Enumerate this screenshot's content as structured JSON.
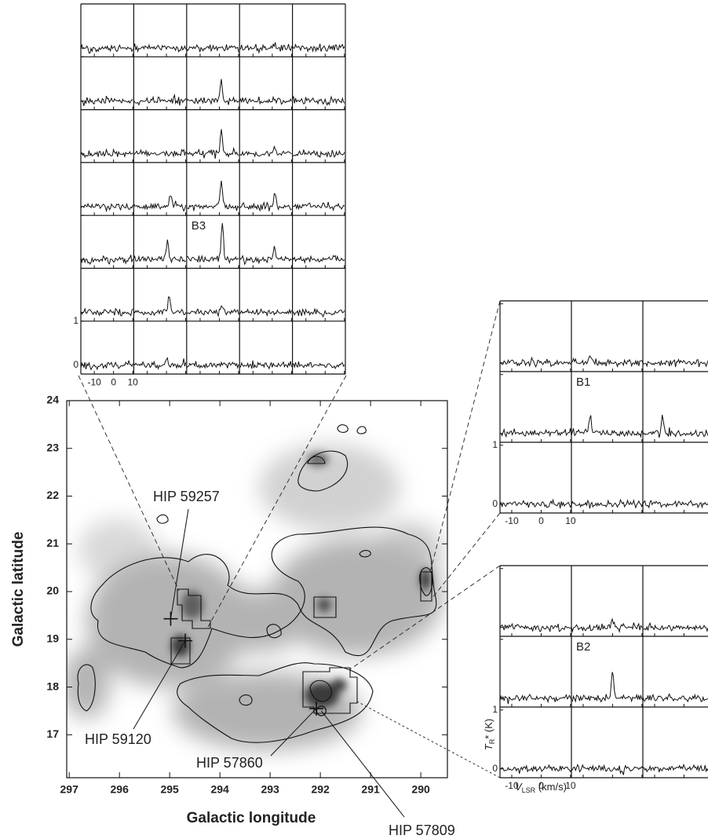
{
  "chart_data": [
    {
      "type": "map",
      "xlabel": "Galactic longitude",
      "ylabel": "Galactic latitude",
      "xlim": [
        297.05,
        289.47
      ],
      "ylim": [
        16.1,
        24.0
      ],
      "xticks": [
        297,
        296,
        295,
        294,
        293,
        292,
        291,
        290
      ],
      "yticks": [
        17,
        18,
        19,
        20,
        21,
        22,
        23,
        24
      ],
      "stars": [
        {
          "name": "HIP 59257",
          "l": 294.98,
          "b": 19.43,
          "marker": "cross"
        },
        {
          "name": "HIP 59120",
          "l": 294.69,
          "b": 18.97,
          "marker": "cross"
        },
        {
          "name": "HIP 57860",
          "l": 292.08,
          "b": 17.55,
          "marker": "cross"
        },
        {
          "name": "HIP 57809",
          "l": 291.98,
          "b": 17.5,
          "marker": "circle"
        }
      ]
    },
    {
      "type": "spectra",
      "label": "B3",
      "xlim": [
        -17,
        10.5
      ],
      "ylim": [
        -0.2,
        1.0
      ],
      "xticks": [
        -10,
        0,
        10
      ],
      "yticks": [
        0,
        1
      ],
      "noise": 0.04,
      "panels": [
        [
          [],
          [],
          [],
          [
            {
              "v": 1,
              "t": 0.08
            }
          ],
          []
        ],
        [
          [],
          [],
          [
            {
              "v": 1,
              "t": 0.45
            }
          ],
          [],
          []
        ],
        [
          [],
          [],
          [
            {
              "v": 1,
              "t": 0.5
            }
          ],
          [
            {
              "v": 1.4,
              "t": 0.15
            }
          ],
          []
        ],
        [
          [],
          [
            {
              "v": 2,
              "t": 0.3
            }
          ],
          [
            {
              "v": 1,
              "t": 0.6
            }
          ],
          [
            {
              "v": 1.4,
              "t": 0.35
            }
          ],
          []
        ],
        [
          [],
          [
            {
              "v": 0.5,
              "t": 0.45
            }
          ],
          [
            {
              "v": 1.5,
              "t": 0.85
            }
          ],
          [
            {
              "v": 1,
              "t": 0.3
            }
          ],
          []
        ],
        [
          [
            {
              "v": 1.4,
              "t": 0.1
            }
          ],
          [
            {
              "v": 1.4,
              "t": 0.4
            }
          ],
          [
            {
              "v": 1.5,
              "t": 0.2
            }
          ],
          [],
          []
        ],
        [
          [],
          [
            {
              "v": 0.5,
              "t": 0.15
            }
          ],
          [
            {
              "v": 1.5,
              "t": 0.05
            }
          ],
          [],
          []
        ]
      ]
    },
    {
      "type": "spectra",
      "label": "B1",
      "xlim": [
        -14,
        10.3
      ],
      "ylim": [
        -0.15,
        1.05
      ],
      "xticks": [
        -10,
        0,
        10
      ],
      "yticks": [
        0,
        1
      ],
      "noise": 0.03,
      "panels": [
        [
          [],
          [
            {
              "v": -7.6,
              "t": 0.12
            }
          ],
          []
        ],
        [
          [],
          [
            {
              "v": -7.6,
              "t": 0.3
            }
          ],
          [
            {
              "v": -7.3,
              "t": 0.3
            }
          ]
        ],
        [
          [],
          [],
          []
        ]
      ]
    },
    {
      "type": "spectra",
      "label": "B2",
      "xlim": [
        -14,
        10.3
      ],
      "ylim": [
        -0.15,
        1.05
      ],
      "xticks": [
        -10,
        0,
        10
      ],
      "yticks": [
        0,
        1
      ],
      "noise": 0.03,
      "xlabel": {
        "symbol": "V",
        "sub": "LSR",
        "unit": " (km/s)"
      },
      "ylabel": {
        "symbol": "T",
        "sub": "R",
        "unit": "* (K)"
      },
      "panels": [
        [
          [],
          [
            {
              "v": 0.1,
              "t": 0.15
            }
          ],
          []
        ],
        [
          [],
          [
            {
              "v": 0,
              "t": 0.4
            }
          ],
          []
        ],
        [
          [],
          [],
          []
        ]
      ]
    }
  ]
}
